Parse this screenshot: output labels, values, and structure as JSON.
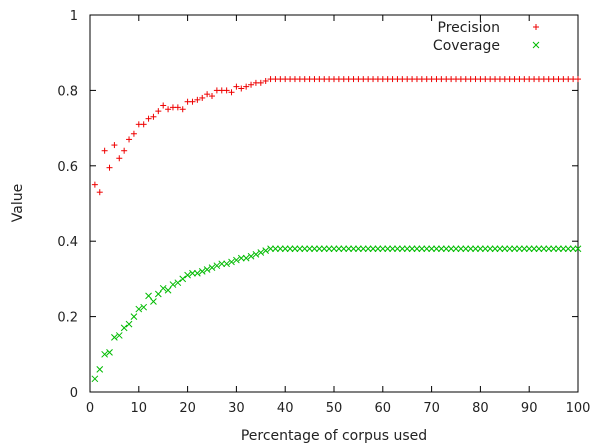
{
  "chart_data": {
    "type": "scatter",
    "xlabel": "Percentage of corpus used",
    "ylabel": "Value",
    "xlim": [
      0,
      100
    ],
    "ylim": [
      0,
      1
    ],
    "xticks": [
      "0",
      "10",
      "20",
      "30",
      "40",
      "50",
      "60",
      "70",
      "80",
      "90",
      "100"
    ],
    "yticks": [
      "0",
      "0.2",
      "0.4",
      "0.6",
      "0.8",
      "1"
    ],
    "grid": false,
    "legend_position": "top-right",
    "series": [
      {
        "name": "Precision",
        "marker": "plus",
        "color": "#ee0000",
        "x": [
          1,
          2,
          3,
          4,
          5,
          6,
          7,
          8,
          9,
          10,
          11,
          12,
          13,
          14,
          15,
          16,
          17,
          18,
          19,
          20,
          21,
          22,
          23,
          24,
          25,
          26,
          27,
          28,
          29,
          30,
          31,
          32,
          33,
          34,
          35,
          36,
          37,
          38,
          39,
          40,
          41,
          42,
          43,
          44,
          45,
          46,
          47,
          48,
          49,
          50,
          51,
          52,
          53,
          54,
          55,
          56,
          57,
          58,
          59,
          60,
          61,
          62,
          63,
          64,
          65,
          66,
          67,
          68,
          69,
          70,
          71,
          72,
          73,
          74,
          75,
          76,
          77,
          78,
          79,
          80,
          81,
          82,
          83,
          84,
          85,
          86,
          87,
          88,
          89,
          90,
          91,
          92,
          93,
          94,
          95,
          96,
          97,
          98,
          99,
          100
        ],
        "y": [
          0.55,
          0.53,
          0.64,
          0.595,
          0.655,
          0.62,
          0.64,
          0.67,
          0.685,
          0.71,
          0.71,
          0.725,
          0.73,
          0.745,
          0.76,
          0.75,
          0.755,
          0.755,
          0.75,
          0.77,
          0.77,
          0.775,
          0.78,
          0.79,
          0.785,
          0.8,
          0.8,
          0.8,
          0.795,
          0.81,
          0.805,
          0.81,
          0.815,
          0.82,
          0.82,
          0.825,
          0.83,
          0.83,
          0.83,
          0.83,
          0.83,
          0.83,
          0.83,
          0.83,
          0.83,
          0.83,
          0.83,
          0.83,
          0.83,
          0.83,
          0.83,
          0.83,
          0.83,
          0.83,
          0.83,
          0.83,
          0.83,
          0.83,
          0.83,
          0.83,
          0.83,
          0.83,
          0.83,
          0.83,
          0.83,
          0.83,
          0.83,
          0.83,
          0.83,
          0.83,
          0.83,
          0.83,
          0.83,
          0.83,
          0.83,
          0.83,
          0.83,
          0.83,
          0.83,
          0.83,
          0.83,
          0.83,
          0.83,
          0.83,
          0.83,
          0.83,
          0.83,
          0.83,
          0.83,
          0.83,
          0.83,
          0.83,
          0.83,
          0.83,
          0.83,
          0.83,
          0.83,
          0.83,
          0.83,
          0.83
        ]
      },
      {
        "name": "Coverage",
        "marker": "x",
        "color": "#00bb00",
        "x": [
          1,
          2,
          3,
          4,
          5,
          6,
          7,
          8,
          9,
          10,
          11,
          12,
          13,
          14,
          15,
          16,
          17,
          18,
          19,
          20,
          21,
          22,
          23,
          24,
          25,
          26,
          27,
          28,
          29,
          30,
          31,
          32,
          33,
          34,
          35,
          36,
          37,
          38,
          39,
          40,
          41,
          42,
          43,
          44,
          45,
          46,
          47,
          48,
          49,
          50,
          51,
          52,
          53,
          54,
          55,
          56,
          57,
          58,
          59,
          60,
          61,
          62,
          63,
          64,
          65,
          66,
          67,
          68,
          69,
          70,
          71,
          72,
          73,
          74,
          75,
          76,
          77,
          78,
          79,
          80,
          81,
          82,
          83,
          84,
          85,
          86,
          87,
          88,
          89,
          90,
          91,
          92,
          93,
          94,
          95,
          96,
          97,
          98,
          99,
          100
        ],
        "y": [
          0.035,
          0.06,
          0.1,
          0.105,
          0.145,
          0.15,
          0.17,
          0.18,
          0.2,
          0.22,
          0.225,
          0.255,
          0.24,
          0.26,
          0.275,
          0.27,
          0.285,
          0.29,
          0.3,
          0.31,
          0.315,
          0.315,
          0.32,
          0.325,
          0.33,
          0.335,
          0.34,
          0.34,
          0.345,
          0.35,
          0.355,
          0.355,
          0.36,
          0.365,
          0.37,
          0.375,
          0.38,
          0.38,
          0.38,
          0.38,
          0.38,
          0.38,
          0.38,
          0.38,
          0.38,
          0.38,
          0.38,
          0.38,
          0.38,
          0.38,
          0.38,
          0.38,
          0.38,
          0.38,
          0.38,
          0.38,
          0.38,
          0.38,
          0.38,
          0.38,
          0.38,
          0.38,
          0.38,
          0.38,
          0.38,
          0.38,
          0.38,
          0.38,
          0.38,
          0.38,
          0.38,
          0.38,
          0.38,
          0.38,
          0.38,
          0.38,
          0.38,
          0.38,
          0.38,
          0.38,
          0.38,
          0.38,
          0.38,
          0.38,
          0.38,
          0.38,
          0.38,
          0.38,
          0.38,
          0.38,
          0.38,
          0.38,
          0.38,
          0.38,
          0.38,
          0.38,
          0.38,
          0.38,
          0.38,
          0.38
        ]
      }
    ]
  }
}
